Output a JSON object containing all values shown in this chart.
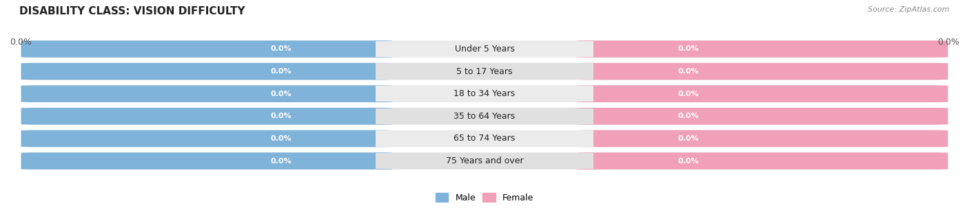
{
  "title": "DISABILITY CLASS: VISION DIFFICULTY",
  "source_text": "Source: ZipAtlas.com",
  "categories": [
    "Under 5 Years",
    "5 to 17 Years",
    "18 to 34 Years",
    "35 to 64 Years",
    "65 to 74 Years",
    "75 Years and over"
  ],
  "male_values": [
    0.0,
    0.0,
    0.0,
    0.0,
    0.0,
    0.0
  ],
  "female_values": [
    0.0,
    0.0,
    0.0,
    0.0,
    0.0,
    0.0
  ],
  "male_color": "#7fb3d9",
  "female_color": "#f0a0b8",
  "male_label": "Male",
  "female_label": "Female",
  "row_bg_even": "#ebebeb",
  "row_bg_odd": "#e0e0e0",
  "title_fontsize": 11,
  "source_fontsize": 8,
  "category_fontsize": 9,
  "value_fontsize": 8,
  "left_tick_label": "0.0%",
  "right_tick_label": "0.0%",
  "tick_fontsize": 9
}
